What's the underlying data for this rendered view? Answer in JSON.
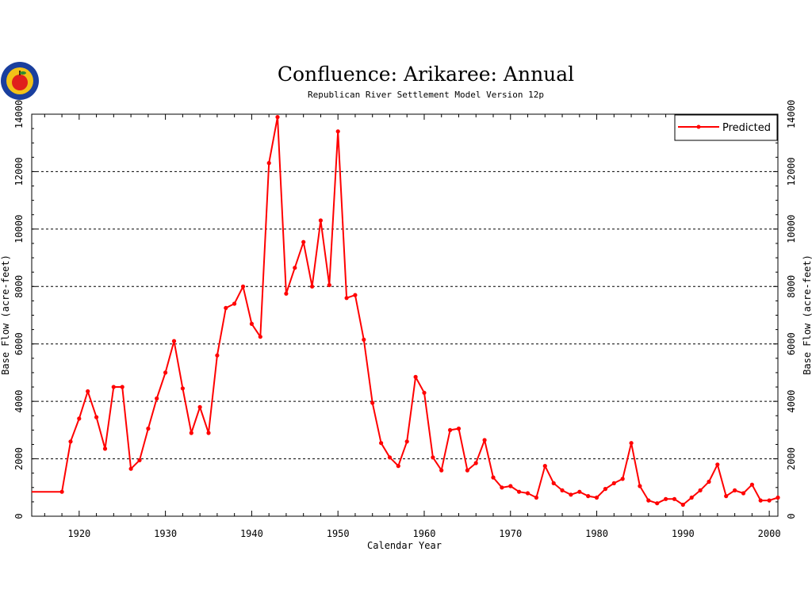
{
  "colors": {
    "series": "#ff0000",
    "axis": "#000000",
    "grid": "#000000",
    "background": "#ffffff",
    "logo_outer": "#1a3f9e",
    "logo_inner": "#f2c218",
    "logo_apple": "#e0201c"
  },
  "logo": {
    "icon": "state-seal-apple-icon"
  },
  "chart_data": {
    "type": "line",
    "title": "Confluence: Arikaree: Annual",
    "subtitle": "Republican River Settlement Model Version 12p",
    "xlabel": "Calendar Year",
    "ylabel": "Base Flow (acre-feet)",
    "ylabel_right": "Base Flow (acre-feet)",
    "xlim": [
      1914.5,
      2001
    ],
    "ylim": [
      0,
      14000
    ],
    "xticks": [
      1920,
      1930,
      1940,
      1950,
      1960,
      1970,
      1980,
      1990,
      2000
    ],
    "yticks": [
      0,
      2000,
      4000,
      6000,
      8000,
      10000,
      12000,
      14000
    ],
    "grid": "horizontal-dashed",
    "legend_position": "top-right",
    "series": [
      {
        "name": "Predicted",
        "color": "#ff0000",
        "x": [
          1918,
          1919,
          1920,
          1921,
          1922,
          1923,
          1924,
          1925,
          1926,
          1927,
          1928,
          1929,
          1930,
          1931,
          1932,
          1933,
          1934,
          1935,
          1936,
          1937,
          1938,
          1939,
          1940,
          1941,
          1942,
          1943,
          1944,
          1945,
          1946,
          1947,
          1948,
          1949,
          1950,
          1951,
          1952,
          1953,
          1954,
          1955,
          1956,
          1957,
          1958,
          1959,
          1960,
          1961,
          1962,
          1963,
          1964,
          1965,
          1966,
          1967,
          1968,
          1969,
          1970,
          1971,
          1972,
          1973,
          1974,
          1975,
          1976,
          1977,
          1978,
          1979,
          1980,
          1981,
          1982,
          1983,
          1984,
          1985,
          1986,
          1987,
          1988,
          1989,
          1990,
          1991,
          1992,
          1993,
          1994,
          1995,
          1996,
          1997,
          1998,
          1999,
          2000,
          2001
        ],
        "values": [
          850,
          2600,
          3400,
          4350,
          3450,
          2350,
          4500,
          4500,
          1650,
          1950,
          3050,
          4100,
          5000,
          6100,
          4450,
          2900,
          3800,
          2900,
          5600,
          7250,
          7400,
          8000,
          6700,
          6250,
          12300,
          13900,
          7750,
          8650,
          9550,
          8000,
          10300,
          8050,
          13400,
          7600,
          7700,
          6150,
          3950,
          2550,
          2050,
          1750,
          2600,
          4850,
          4300,
          2050,
          1600,
          3000,
          3050,
          1600,
          1850,
          2650,
          1350,
          1000,
          1050,
          850,
          800,
          650,
          1750,
          1150,
          900,
          750,
          850,
          700,
          650,
          950,
          1150,
          1300,
          2550,
          1050,
          550,
          450,
          600,
          600,
          400,
          650,
          900,
          1200,
          1800,
          700,
          900,
          800,
          1100,
          550,
          550,
          650
        ]
      }
    ]
  }
}
